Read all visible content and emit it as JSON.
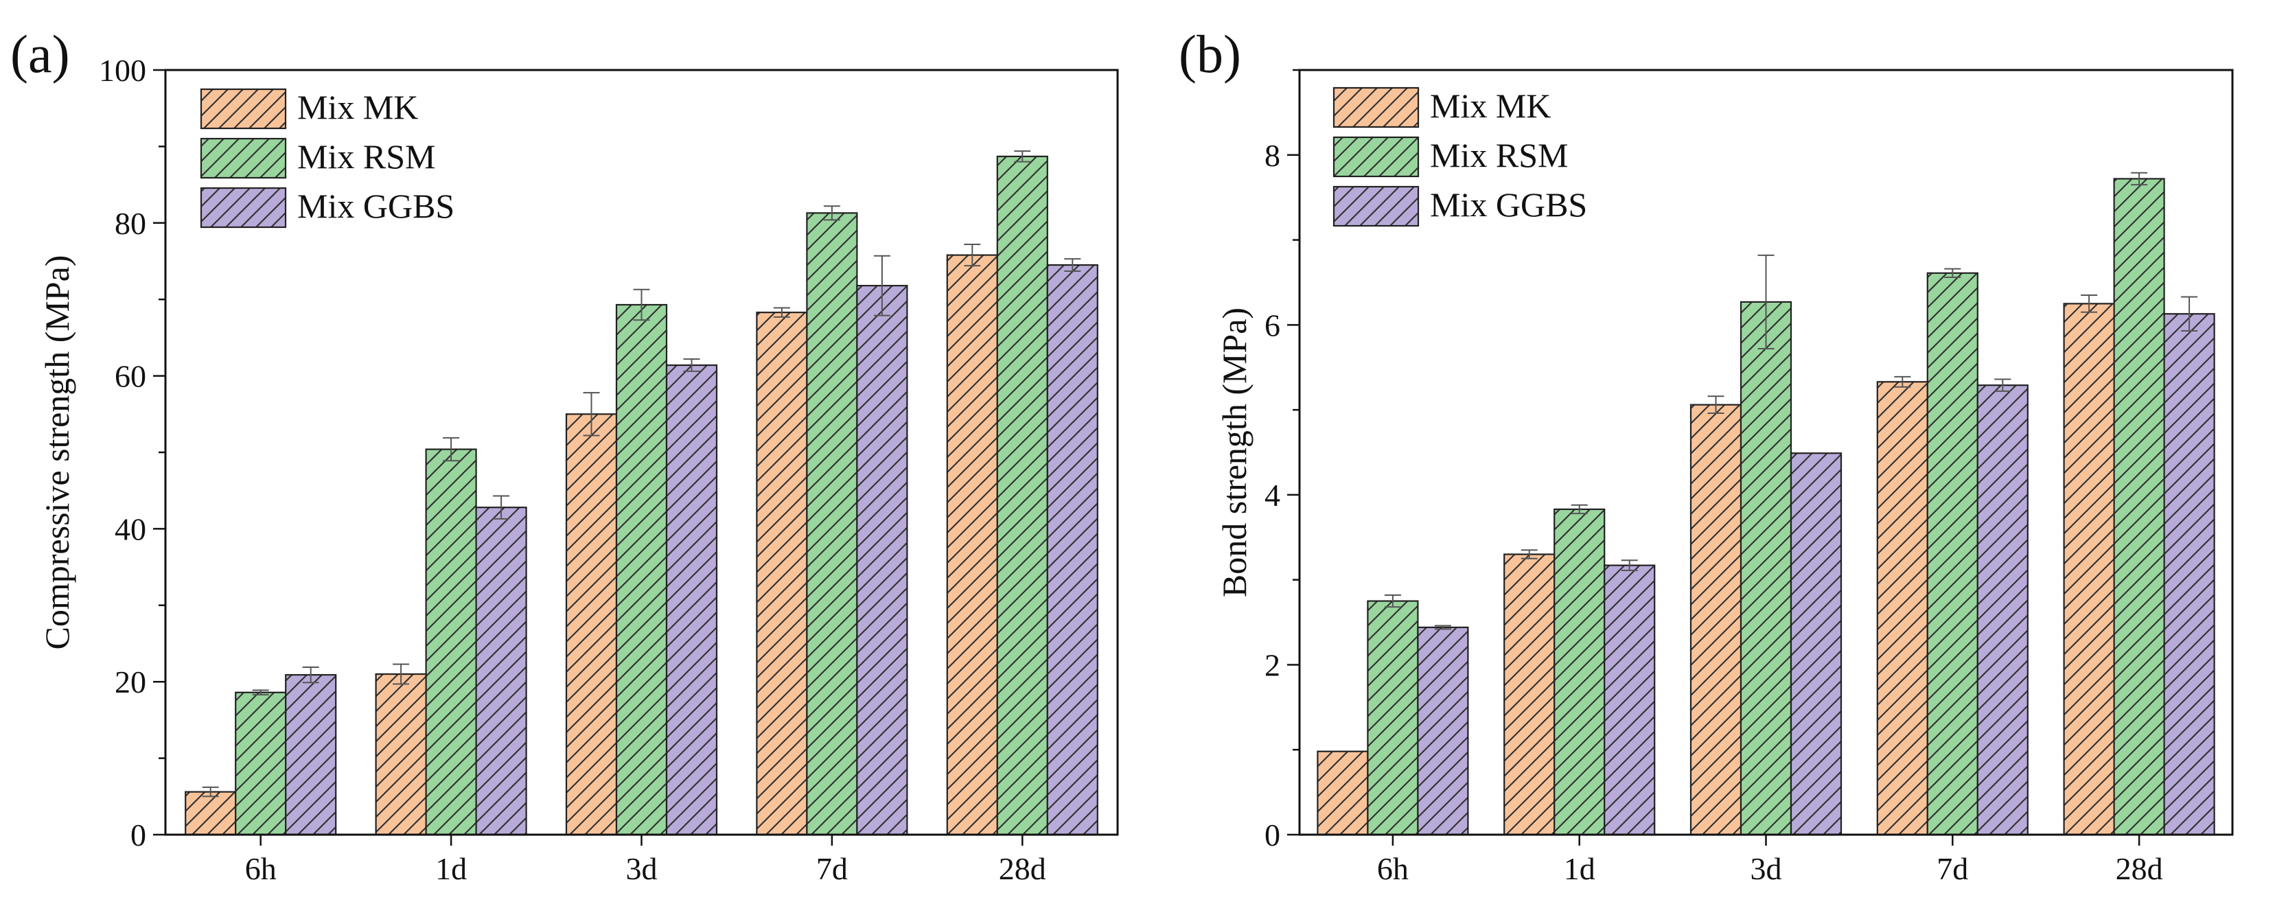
{
  "panel_labels": [
    "(a)",
    "(b)"
  ],
  "colors": {
    "Mix MK": "#f9c39a",
    "Mix RSM": "#99d69e",
    "Mix GGBS": "#b8abd9",
    "edge": "#222222",
    "hatch": "#333333",
    "errorbar": "#555555"
  },
  "chart_data": [
    {
      "type": "bar",
      "panel": "(a)",
      "categories": [
        "6h",
        "1d",
        "3d",
        "7d",
        "28d"
      ],
      "xlabel": "",
      "ylabel": "Compressive strength (MPa)",
      "ylim": [
        0,
        100
      ],
      "yticks": [
        0,
        20,
        40,
        60,
        80,
        100
      ],
      "grid": false,
      "legend_position": "top-left",
      "series": [
        {
          "name": "Mix MK",
          "values": [
            5.6,
            21.0,
            55.0,
            68.3,
            75.8
          ],
          "errors": [
            0.6,
            1.3,
            2.8,
            0.6,
            1.4
          ]
        },
        {
          "name": "Mix RSM",
          "values": [
            18.6,
            50.4,
            69.3,
            81.3,
            88.7
          ],
          "errors": [
            0.3,
            1.5,
            2.0,
            0.9,
            0.7
          ]
        },
        {
          "name": "Mix GGBS",
          "values": [
            20.9,
            42.8,
            61.4,
            71.8,
            74.5
          ],
          "errors": [
            1.0,
            1.5,
            0.8,
            3.9,
            0.8
          ]
        }
      ]
    },
    {
      "type": "bar",
      "panel": "(b)",
      "categories": [
        "6h",
        "1d",
        "3d",
        "7d",
        "28d"
      ],
      "xlabel": "",
      "ylabel": "Bond strength (MPa)",
      "ylim": [
        0,
        9
      ],
      "yticks": [
        0,
        2,
        4,
        6,
        8
      ],
      "grid": false,
      "legend_position": "top-left",
      "series": [
        {
          "name": "Mix MK",
          "values": [
            0.98,
            3.3,
            5.06,
            5.33,
            6.25
          ],
          "errors": [
            0.0,
            0.05,
            0.1,
            0.06,
            0.1
          ]
        },
        {
          "name": "Mix RSM",
          "values": [
            2.75,
            3.83,
            6.27,
            6.61,
            7.72
          ],
          "errors": [
            0.07,
            0.05,
            0.55,
            0.05,
            0.07
          ]
        },
        {
          "name": "Mix GGBS",
          "values": [
            2.44,
            3.17,
            4.49,
            5.29,
            6.13
          ],
          "errors": [
            0.02,
            0.06,
            0.0,
            0.07,
            0.2
          ]
        }
      ]
    }
  ]
}
